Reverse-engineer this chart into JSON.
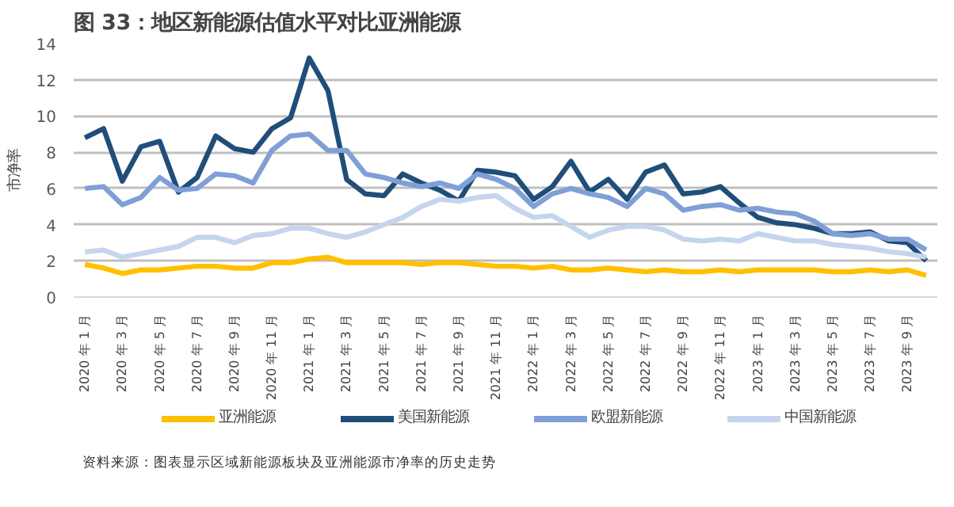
{
  "chart_data": {
    "type": "line",
    "title": "图 33：地区新能源估值水平对比亚洲能源",
    "ylabel": "市净率",
    "categories": [
      "2020 年 1 月",
      null,
      "2020 年 3 月",
      null,
      "2020 年 5 月",
      null,
      "2020 年 7 月",
      null,
      "2020 年 9 月",
      null,
      "2020 年 11 月",
      null,
      "2021 年 1 月",
      null,
      "2021 年 3 月",
      null,
      "2021 年 5 月",
      null,
      "2021 年 7 月",
      null,
      "2021 年 9 月",
      null,
      "2021 年 11 月",
      null,
      "2022 年 1 月",
      null,
      "2022 年 3 月",
      null,
      "2022 年 5 月",
      null,
      "2022 年 7 月",
      null,
      "2022 年 9 月",
      null,
      "2022 年 11 月",
      null,
      "2023 年 1 月",
      null,
      "2023 年 3 月",
      null,
      "2023 年 5 月",
      null,
      "2023 年 7 月",
      null,
      "2023 年 9 月",
      null
    ],
    "series": [
      {
        "name": "亚洲能源",
        "color": "#ffc000",
        "values": [
          1.8,
          1.6,
          1.3,
          1.5,
          1.5,
          1.6,
          1.7,
          1.7,
          1.6,
          1.6,
          1.9,
          1.9,
          2.1,
          2.2,
          1.9,
          1.9,
          1.9,
          1.9,
          1.8,
          1.9,
          1.9,
          1.8,
          1.7,
          1.7,
          1.6,
          1.7,
          1.5,
          1.5,
          1.6,
          1.5,
          1.4,
          1.5,
          1.4,
          1.4,
          1.5,
          1.4,
          1.5,
          1.5,
          1.5,
          1.5,
          1.4,
          1.4,
          1.5,
          1.4,
          1.5,
          1.2
        ]
      },
      {
        "name": "美国新能源",
        "color": "#1f4e79",
        "values": [
          8.8,
          9.3,
          6.4,
          8.3,
          8.6,
          5.8,
          6.6,
          8.9,
          8.2,
          8.0,
          9.3,
          9.9,
          13.2,
          11.4,
          6.5,
          5.7,
          5.6,
          6.8,
          6.3,
          5.9,
          5.3,
          7.0,
          6.9,
          6.7,
          5.4,
          6.1,
          7.5,
          5.8,
          6.5,
          5.4,
          6.9,
          7.3,
          5.7,
          5.8,
          6.1,
          5.2,
          4.4,
          4.1,
          4.0,
          3.8,
          3.5,
          3.5,
          3.6,
          3.1,
          3.0,
          2.0
        ]
      },
      {
        "name": "欧盟新能源",
        "color": "#7f9fd6",
        "values": [
          6.0,
          6.1,
          5.1,
          5.5,
          6.6,
          5.9,
          6.0,
          6.8,
          6.7,
          6.3,
          8.1,
          8.9,
          9.0,
          8.1,
          8.1,
          6.8,
          6.6,
          6.3,
          6.1,
          6.3,
          6.0,
          6.8,
          6.5,
          6.0,
          5.0,
          5.7,
          6.0,
          5.7,
          5.5,
          5.0,
          6.0,
          5.7,
          4.8,
          5.0,
          5.1,
          4.8,
          4.9,
          4.7,
          4.6,
          4.2,
          3.5,
          3.4,
          3.5,
          3.2,
          3.2,
          2.6
        ]
      },
      {
        "name": "中国新能源",
        "color": "#c5d5ee",
        "values": [
          2.5,
          2.6,
          2.2,
          2.4,
          2.6,
          2.8,
          3.3,
          3.3,
          3.0,
          3.4,
          3.5,
          3.8,
          3.8,
          3.5,
          3.3,
          3.6,
          4.0,
          4.4,
          5.0,
          5.4,
          5.3,
          5.5,
          5.6,
          4.9,
          4.4,
          4.5,
          3.9,
          3.3,
          3.7,
          3.9,
          3.9,
          3.7,
          3.2,
          3.1,
          3.2,
          3.1,
          3.5,
          3.3,
          3.1,
          3.1,
          2.9,
          2.8,
          2.7,
          2.5,
          2.4,
          2.2
        ]
      }
    ],
    "ylim": [
      0,
      14
    ],
    "yticks": [
      0,
      2,
      4,
      6,
      8,
      10,
      12,
      14
    ],
    "grid": "y",
    "legend": "bottom",
    "marker": "none",
    "line_style": "solid",
    "annotations": [
      "资料来源：图表显示区域新能源板块及亚洲能源市净率的历史走势"
    ]
  }
}
